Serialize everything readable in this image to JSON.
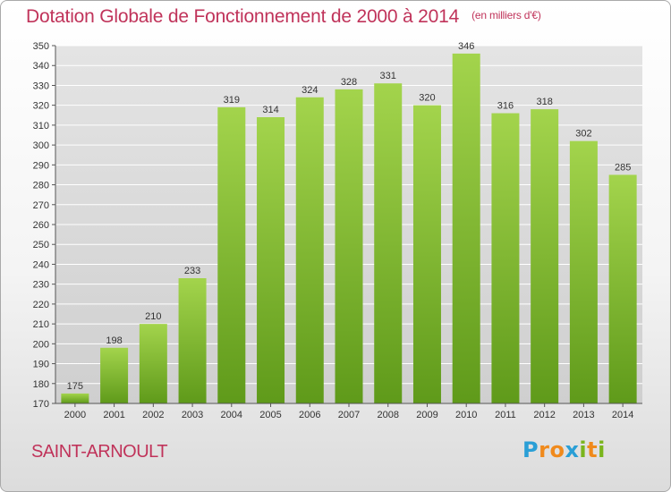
{
  "header": {
    "title": "Dotation Globale de Fonctionnement de 2000 à 2014",
    "unit": "(en milliers d'€)"
  },
  "footer": {
    "place": "SAINT-ARNOULT",
    "logo_letters": [
      "P",
      "r",
      "o",
      "x",
      "i",
      "t",
      "i"
    ],
    "logo_colors": [
      "#2a9fd6",
      "#f08a1c",
      "#f08a1c",
      "#2a9fd6",
      "#7ab51d",
      "#f08a1c",
      "#7ab51d"
    ]
  },
  "chart_data": {
    "type": "bar",
    "title": "Dotation Globale de Fonctionnement de 2000 à 2014",
    "xlabel": "",
    "ylabel": "",
    "categories": [
      "2000",
      "2001",
      "2002",
      "2003",
      "2004",
      "2005",
      "2006",
      "2007",
      "2008",
      "2009",
      "2010",
      "2011",
      "2012",
      "2013",
      "2014"
    ],
    "values": [
      175,
      198,
      210,
      233,
      319,
      314,
      324,
      328,
      331,
      320,
      346,
      316,
      318,
      302,
      285
    ],
    "ylim": [
      170,
      350
    ],
    "yticks": [
      170,
      180,
      190,
      200,
      210,
      220,
      230,
      240,
      250,
      260,
      270,
      280,
      290,
      300,
      310,
      320,
      330,
      340,
      350
    ],
    "grid": true,
    "data_labels": true,
    "colors": {
      "bar_top": "#a3d44c",
      "bar_bottom": "#5f9a1a",
      "grid": "#ffffff",
      "axis": "#555555"
    }
  }
}
